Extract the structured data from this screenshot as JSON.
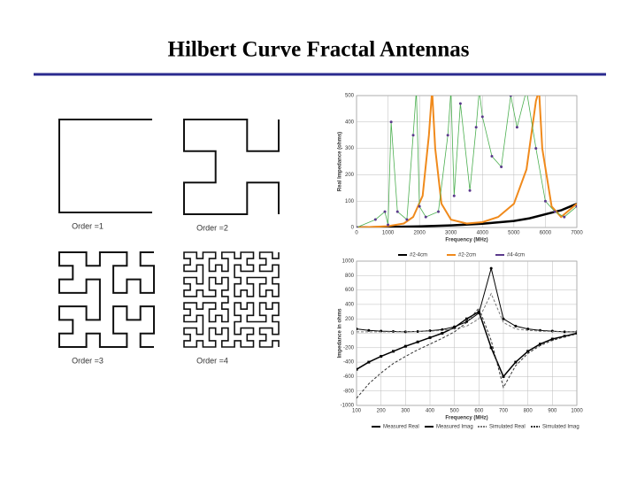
{
  "title": "Hilbert Curve Fractal Antennas",
  "diagrams": [
    {
      "label": "Order =1",
      "order": 1
    },
    {
      "label": "Order =2",
      "order": 2
    },
    {
      "label": "Order =3",
      "order": 3
    },
    {
      "label": "Order =4",
      "order": 4
    }
  ],
  "charts": [
    {
      "type": "line",
      "y_label": "Real Impedance (ohms)",
      "x_label": "Frequency (MHz)",
      "xlim": [
        0,
        7000
      ],
      "xticks": [
        0,
        1000,
        2000,
        3000,
        4000,
        5000,
        6000,
        7000
      ],
      "ylim": [
        0,
        500
      ],
      "yticks": [
        0,
        100,
        200,
        300,
        400,
        500
      ],
      "grid": true,
      "series": [
        {
          "name": "#2-4cm",
          "color": "#000000",
          "width": 2.5,
          "x": [
            0,
            1000,
            2000,
            3000,
            4000,
            5000,
            5500,
            6000,
            6500,
            7000
          ],
          "values": [
            0,
            2,
            4,
            8,
            14,
            25,
            35,
            50,
            65,
            90
          ]
        },
        {
          "name": "#2-2cm",
          "color": "#f08a1c",
          "width": 2,
          "x": [
            0,
            500,
            1000,
            1500,
            1800,
            2100,
            2300,
            2400,
            2500,
            2700,
            3000,
            3500,
            4000,
            4500,
            5000,
            5400,
            5700,
            5800,
            5900,
            6200,
            6500,
            7000
          ],
          "values": [
            0,
            2,
            5,
            15,
            40,
            120,
            350,
            520,
            300,
            90,
            30,
            15,
            20,
            40,
            90,
            220,
            480,
            520,
            300,
            80,
            40,
            90
          ]
        },
        {
          "name": "#4-4cm",
          "color": "#4caf50",
          "width": 0.8,
          "marker": "circle",
          "marker_color": "#5b3a8c",
          "x": [
            0,
            600,
            900,
            1000,
            1100,
            1300,
            1600,
            1800,
            1900,
            2000,
            2200,
            2600,
            2900,
            3000,
            3100,
            3300,
            3600,
            3800,
            3900,
            4000,
            4300,
            4600,
            4900,
            5100,
            5400,
            5700,
            6000,
            6300,
            6600,
            7000
          ],
          "values": [
            0,
            30,
            60,
            10,
            400,
            60,
            30,
            350,
            520,
            80,
            40,
            60,
            350,
            520,
            120,
            470,
            140,
            380,
            520,
            420,
            270,
            230,
            500,
            380,
            520,
            300,
            100,
            60,
            40,
            80
          ]
        }
      ]
    },
    {
      "type": "line",
      "y_label": "Impedance in ohms",
      "x_label": "Frequency (MHz)",
      "xlim": [
        100,
        1000
      ],
      "xticks": [
        100,
        200,
        300,
        400,
        500,
        600,
        700,
        800,
        900,
        1000
      ],
      "ylim": [
        -1000,
        1000
      ],
      "yticks": [
        -1000,
        -800,
        -600,
        -400,
        -200,
        0,
        200,
        400,
        600,
        800,
        1000
      ],
      "grid": true,
      "x": [
        100,
        150,
        200,
        250,
        300,
        350,
        400,
        450,
        500,
        550,
        600,
        650,
        700,
        750,
        800,
        850,
        900,
        950,
        1000
      ],
      "series": [
        {
          "name": "Measured Real",
          "color": "#000000",
          "width": 1,
          "marker": "circle",
          "marker_color": "#000000",
          "values": [
            60,
            40,
            30,
            25,
            20,
            25,
            35,
            50,
            90,
            160,
            280,
            900,
            200,
            100,
            60,
            40,
            30,
            20,
            20
          ]
        },
        {
          "name": "Measured Imag",
          "color": "#000000",
          "width": 1.5,
          "marker": "square",
          "marker_color": "#000000",
          "values": [
            -500,
            -400,
            -320,
            -250,
            -180,
            -120,
            -60,
            0,
            80,
            200,
            300,
            -200,
            -600,
            -400,
            -250,
            -150,
            -80,
            -40,
            0
          ]
        },
        {
          "name": "Simulated Real",
          "color": "#777777",
          "width": 1,
          "dash": true,
          "values": [
            20,
            20,
            20,
            20,
            20,
            25,
            30,
            40,
            60,
            100,
            200,
            550,
            150,
            60,
            40,
            30,
            25,
            20,
            20
          ]
        },
        {
          "name": "Simulated Imag",
          "color": "#333333",
          "width": 1,
          "dash": true,
          "values": [
            -900,
            -700,
            -550,
            -420,
            -320,
            -230,
            -150,
            -70,
            20,
            150,
            350,
            -100,
            -750,
            -450,
            -280,
            -170,
            -100,
            -50,
            -10
          ]
        }
      ]
    }
  ]
}
